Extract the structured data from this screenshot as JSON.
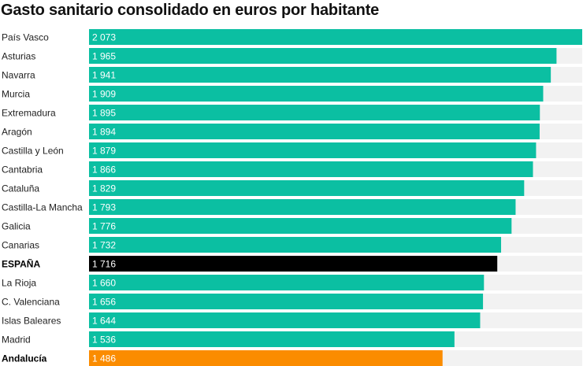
{
  "chart_data": {
    "type": "bar",
    "orientation": "horizontal",
    "title": "Gasto sanitario consolidado en euros por habitante",
    "categories": [
      "País Vasco",
      "Asturias",
      "Navarra",
      "Murcia",
      "Extremadura",
      "Aragón",
      "Castilla y León",
      "Cantabria",
      "Cataluña",
      "Castilla-La Mancha",
      "Galicia",
      "Canarias",
      "ESPAÑA",
      "La Rioja",
      "C. Valenciana",
      "Islas Baleares",
      "Madrid",
      "Andalucía"
    ],
    "values": [
      2073,
      1965,
      1941,
      1909,
      1895,
      1894,
      1879,
      1866,
      1829,
      1793,
      1776,
      1732,
      1716,
      1660,
      1656,
      1644,
      1536,
      1486
    ],
    "value_labels": [
      "2 073",
      "1 965",
      "1 941",
      "1 909",
      "1 895",
      "1 894",
      "1 879",
      "1 866",
      "1 829",
      "1 793",
      "1 776",
      "1 732",
      "1 716",
      "1 660",
      "1 656",
      "1 644",
      "1 536",
      "1 486"
    ],
    "bold_categories": [
      "ESPAÑA",
      "Andalucía"
    ],
    "xlim": [
      0,
      2073
    ],
    "grid": false,
    "legend": "none",
    "colors": {
      "default": "#0bbfa2",
      "ESPAÑA": "#000000",
      "Andalucía": "#fb8c00",
      "track": "#f2f2f2"
    }
  }
}
